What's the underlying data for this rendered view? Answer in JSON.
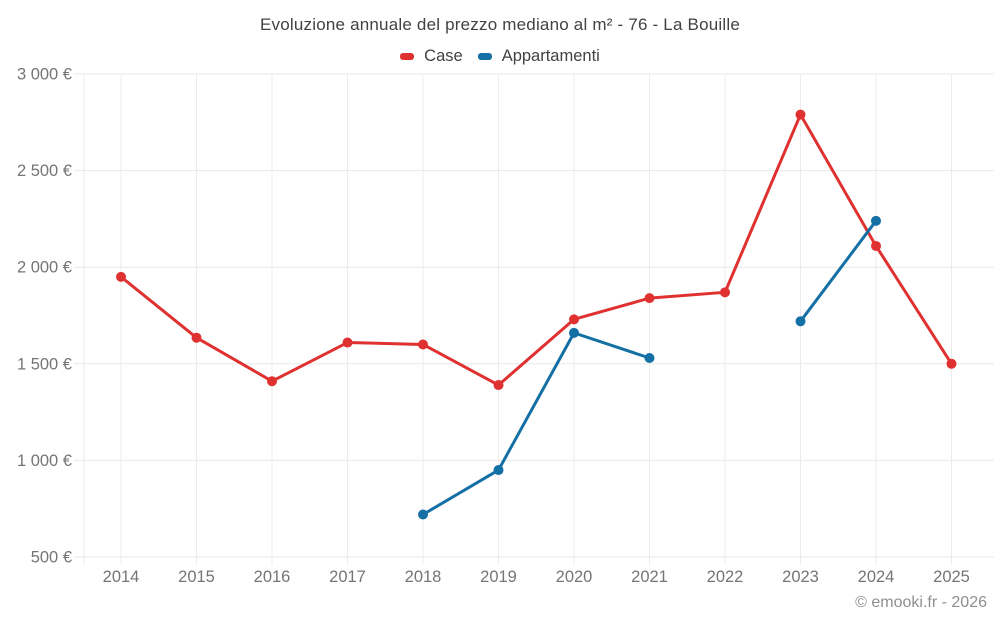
{
  "chart_data": {
    "type": "line",
    "title": "Evoluzione annuale del prezzo mediano al m² - 76 - La Bouille",
    "categories": [
      "2014",
      "2015",
      "2016",
      "2017",
      "2018",
      "2019",
      "2020",
      "2021",
      "2022",
      "2023",
      "2024",
      "2025"
    ],
    "series": [
      {
        "name": "Case",
        "color": "#e03131",
        "values": [
          1950,
          1635,
          1410,
          1610,
          1600,
          1390,
          1730,
          1840,
          1870,
          2790,
          2110,
          1500
        ]
      },
      {
        "name": "Appartamenti",
        "color": "#1470a4",
        "values": [
          null,
          null,
          null,
          null,
          720,
          950,
          1660,
          1530,
          null,
          1720,
          2240,
          null
        ]
      }
    ],
    "xlabel": "",
    "ylabel": "",
    "ylim": [
      500,
      3000
    ],
    "y_ticks": [
      {
        "value": 500,
        "label": "500 €"
      },
      {
        "value": 1000,
        "label": "1 000 €"
      },
      {
        "value": 1500,
        "label": "1 500 €"
      },
      {
        "value": 2000,
        "label": "2 000 €"
      },
      {
        "value": 2500,
        "label": "2 500 €"
      },
      {
        "value": 3000,
        "label": "3 000 €"
      }
    ],
    "grid": true,
    "legend_position": "top"
  },
  "footer": {
    "copyright": "© emooki.fr - 2026"
  }
}
